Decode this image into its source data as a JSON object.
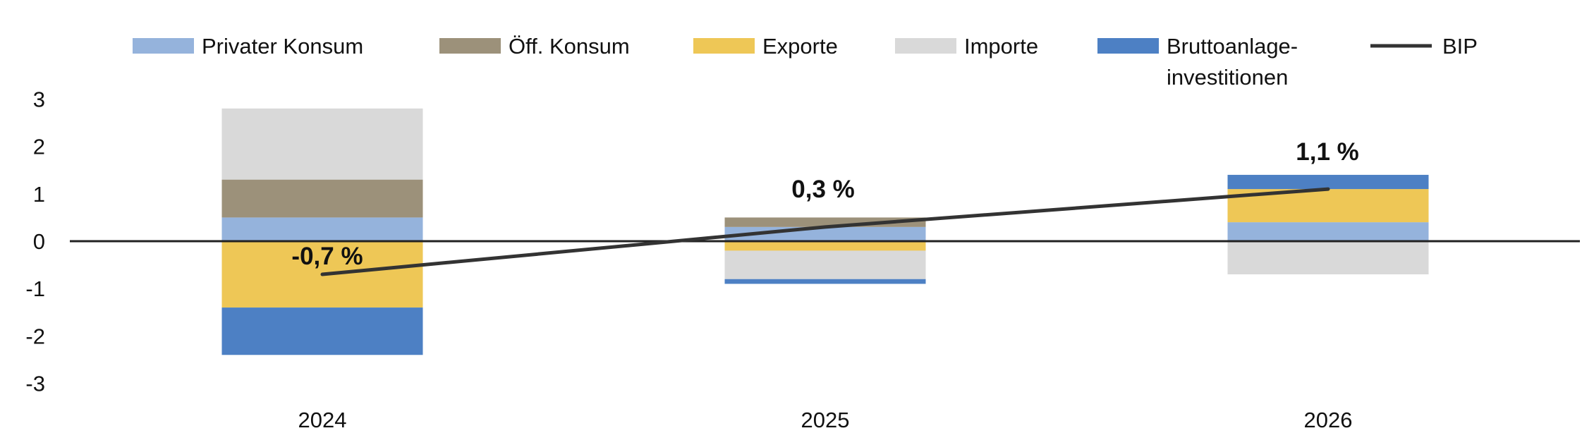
{
  "chart_data": {
    "type": "bar",
    "stacked": true,
    "categories": [
      "2024",
      "2025",
      "2026"
    ],
    "ylim": [
      -3,
      3
    ],
    "yticks": [
      "3",
      "2",
      "1",
      "0",
      "-1",
      "-2",
      "-3"
    ],
    "ytick_values": [
      3,
      2,
      1,
      0,
      -1,
      -2,
      -3
    ],
    "grid": false,
    "legend_position": "top",
    "series": [
      {
        "name": "Privater Konsum",
        "color": "#95b3dc",
        "values": [
          0.5,
          0.3,
          0.4
        ]
      },
      {
        "name": "Öff. Konsum",
        "color": "#9c917a",
        "values": [
          0.8,
          0.2,
          0.0
        ]
      },
      {
        "name": "Exporte",
        "color": "#eec756",
        "values": [
          -1.4,
          -0.2,
          0.7
        ]
      },
      {
        "name": "Importe",
        "color": "#d9d9d9",
        "values": [
          1.5,
          -0.6,
          -0.7
        ]
      },
      {
        "name": "Bruttoanlage-\ninvestitionen",
        "color": "#4d80c4",
        "values": [
          -1.0,
          -0.1,
          0.3
        ]
      }
    ],
    "line": {
      "name": "BIP",
      "color": "#333333",
      "values": [
        -0.7,
        0.3,
        1.1
      ],
      "labels": [
        "-0,7 %",
        "0,3 %",
        "1,1 %"
      ]
    }
  }
}
